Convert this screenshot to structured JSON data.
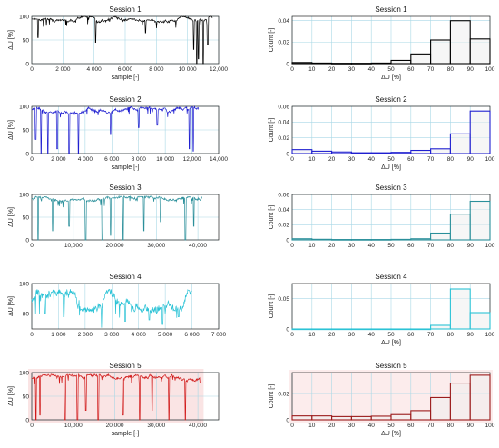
{
  "chart_data": [
    {
      "type": "line",
      "title": "Session 1",
      "xlabel": "sample [-]",
      "ylabel": "ΔU [%]",
      "color": "#000000",
      "xlim": [
        0,
        12000
      ],
      "ylim": [
        0,
        100
      ],
      "xticks": [
        0,
        2000,
        4000,
        6000,
        8000,
        10000,
        12000
      ],
      "xtick_labels": [
        "0",
        "2 000",
        "4 000",
        "6 000",
        "8 000",
        "10 000",
        "12,000"
      ],
      "yticks": [
        0,
        50,
        100
      ],
      "ytick_labels": [
        "0",
        "50",
        "100"
      ],
      "n_samples": 11600,
      "base": [
        88,
        100
      ],
      "dips": [
        [
          400,
          55
        ],
        [
          4100,
          45
        ],
        [
          7300,
          65
        ],
        [
          10400,
          30
        ],
        [
          10600,
          0
        ],
        [
          10700,
          10
        ],
        [
          11000,
          0
        ],
        [
          11300,
          40
        ]
      ]
    },
    {
      "type": "bar",
      "title": "Session 1",
      "xlabel": "ΔU [%]",
      "ylabel": "Count [-]",
      "color": "#000000",
      "categories": [
        0,
        10,
        20,
        30,
        40,
        50,
        60,
        70,
        80,
        90
      ],
      "values": [
        0.001,
        0.0005,
        0.0003,
        0.0003,
        0.0005,
        0.003,
        0.009,
        0.022,
        0.04,
        0.023
      ],
      "xlim": [
        0,
        100
      ],
      "ylim": [
        0,
        0.044
      ],
      "yticks": [
        0,
        0.02,
        0.04
      ],
      "ytick_labels": [
        "0",
        "0.02",
        "0.04"
      ],
      "xticks": [
        0,
        10,
        20,
        30,
        40,
        50,
        60,
        70,
        80,
        90,
        100
      ]
    },
    {
      "type": "line",
      "title": "Session 2",
      "xlabel": "sample [-]",
      "ylabel": "ΔU [%]",
      "color": "#1f1fd0",
      "xlim": [
        0,
        14000
      ],
      "ylim": [
        0,
        100
      ],
      "xticks": [
        0,
        2000,
        4000,
        6000,
        8000,
        10000,
        12000,
        14000
      ],
      "xtick_labels": [
        "0",
        "2 000",
        "4 000",
        "6 000",
        "8 000",
        "10 000",
        "12,000",
        "14,000"
      ],
      "yticks": [
        0,
        50,
        100
      ],
      "ytick_labels": [
        "0",
        "50",
        "100"
      ],
      "n_samples": 12500,
      "base": [
        85,
        98
      ],
      "dips": [
        [
          300,
          30
        ],
        [
          700,
          0
        ],
        [
          1200,
          0
        ],
        [
          1900,
          10
        ],
        [
          2800,
          0
        ],
        [
          3500,
          0
        ],
        [
          5900,
          40
        ],
        [
          8000,
          55
        ],
        [
          9400,
          60
        ],
        [
          11800,
          10
        ],
        [
          12100,
          5
        ]
      ]
    },
    {
      "type": "bar",
      "title": "Session 2",
      "xlabel": "ΔU [%]",
      "ylabel": "Count [-]",
      "color": "#1f1fd0",
      "categories": [
        0,
        10,
        20,
        30,
        40,
        50,
        60,
        70,
        80,
        90
      ],
      "values": [
        0.005,
        0.003,
        0.002,
        0.001,
        0.001,
        0.0015,
        0.004,
        0.006,
        0.025,
        0.054
      ],
      "xlim": [
        0,
        100
      ],
      "ylim": [
        0,
        0.06
      ],
      "yticks": [
        0,
        0.02,
        0.04,
        0.06
      ],
      "ytick_labels": [
        "0",
        "0.02",
        "0.04",
        "0.06"
      ],
      "xticks": [
        0,
        10,
        20,
        30,
        40,
        50,
        60,
        70,
        80,
        90,
        100
      ]
    },
    {
      "type": "line",
      "title": "Session 3",
      "xlabel": "",
      "ylabel": "ΔU [%]",
      "color": "#2a8f9a",
      "xlim": [
        0,
        45000
      ],
      "ylim": [
        0,
        100
      ],
      "xticks": [
        0,
        10000,
        20000,
        30000,
        40000
      ],
      "xtick_labels": [
        "0",
        "10,000",
        "20,000",
        "30,000",
        "40,000"
      ],
      "yticks": [
        0,
        50,
        100
      ],
      "ytick_labels": [
        "0",
        "50",
        "100"
      ],
      "n_samples": 41000,
      "base": [
        85,
        95
      ],
      "dips": [
        [
          1500,
          0
        ],
        [
          5000,
          20
        ],
        [
          9000,
          30
        ],
        [
          13000,
          0
        ],
        [
          17000,
          0
        ],
        [
          19000,
          10
        ],
        [
          22000,
          0
        ],
        [
          27000,
          20
        ],
        [
          31000,
          40
        ],
        [
          37000,
          0
        ],
        [
          39000,
          30
        ]
      ]
    },
    {
      "type": "bar",
      "title": "Session 3",
      "xlabel": "",
      "ylabel": "Count [-]",
      "color": "#2a8f9a",
      "categories": [
        0,
        10,
        20,
        30,
        40,
        50,
        60,
        70,
        80,
        90
      ],
      "values": [
        0.0015,
        0.0008,
        0.0005,
        0.0005,
        0.0005,
        0.0007,
        0.0015,
        0.009,
        0.034,
        0.051
      ],
      "xlim": [
        0,
        100
      ],
      "ylim": [
        0,
        0.06
      ],
      "yticks": [
        0,
        0.02,
        0.04,
        0.06
      ],
      "ytick_labels": [
        "0",
        "0.02",
        "0.04",
        "0.06"
      ],
      "xticks": [
        0,
        10,
        20,
        30,
        40,
        50,
        60,
        70,
        80,
        90,
        100
      ]
    },
    {
      "type": "line",
      "title": "Session 4",
      "xlabel": "",
      "ylabel": "ΔU [%]",
      "color": "#2cc3d6",
      "xlim": [
        0,
        7000
      ],
      "ylim": [
        70,
        100
      ],
      "xticks": [
        0,
        1000,
        2000,
        3000,
        4000,
        5000,
        6000,
        7000
      ],
      "xtick_labels": [
        "0",
        "1 000",
        "2 000",
        "3 000",
        "4 000",
        "5 000",
        "6 000",
        "7 000"
      ],
      "yticks": [
        80,
        100
      ],
      "ytick_labels": [
        "80",
        "100"
      ],
      "n_samples": 6000,
      "base": [
        82,
        95
      ],
      "dips": [
        [
          500,
          80
        ],
        [
          1200,
          78
        ],
        [
          3500,
          75
        ],
        [
          4400,
          76
        ],
        [
          4900,
          73
        ],
        [
          5500,
          78
        ]
      ]
    },
    {
      "type": "bar",
      "title": "Session 4",
      "xlabel": "ΔU [%]",
      "ylabel": "Count [-]",
      "color": "#2cc3d6",
      "categories": [
        0,
        10,
        20,
        30,
        40,
        50,
        60,
        70,
        80,
        90
      ],
      "values": [
        0,
        0,
        0,
        0,
        0,
        0,
        0,
        0.006,
        0.066,
        0.027
      ],
      "xlim": [
        0,
        100
      ],
      "ylim": [
        0,
        0.075
      ],
      "yticks": [
        0,
        0.05
      ],
      "ytick_labels": [
        "0",
        "0.05"
      ],
      "xticks": [
        0,
        10,
        20,
        30,
        40,
        50,
        60,
        70,
        80,
        90,
        100
      ]
    },
    {
      "type": "line",
      "title": "Session 5",
      "xlabel": "sample [-]",
      "ylabel": "ΔU [%]",
      "color": "#d01818",
      "shade": "#f5c9c9",
      "xlim": [
        0,
        45000
      ],
      "ylim": [
        0,
        100
      ],
      "xticks": [
        0,
        10000,
        20000,
        30000,
        40000
      ],
      "xtick_labels": [
        "0",
        "10,000",
        "20,000",
        "30,000",
        "40,000"
      ],
      "yticks": [
        0,
        50,
        100
      ],
      "ytick_labels": [
        "0",
        "50",
        "100"
      ],
      "n_samples": 40500,
      "base": [
        82,
        95
      ],
      "dips": [
        [
          1000,
          0
        ],
        [
          2000,
          10
        ],
        [
          8000,
          0
        ],
        [
          11000,
          0
        ],
        [
          13000,
          20
        ],
        [
          16000,
          0
        ],
        [
          22000,
          10
        ],
        [
          26000,
          0
        ],
        [
          29000,
          20
        ],
        [
          33000,
          0
        ],
        [
          37000,
          0
        ]
      ]
    },
    {
      "type": "bar",
      "title": "Session 5",
      "xlabel": "ΔU [%]",
      "ylabel": "Count [-]",
      "color": "#9b1b1b",
      "shade": "#f5c9c9",
      "categories": [
        0,
        10,
        20,
        30,
        40,
        50,
        60,
        70,
        80,
        90
      ],
      "values": [
        0.003,
        0.003,
        0.0025,
        0.0025,
        0.0028,
        0.004,
        0.007,
        0.017,
        0.028,
        0.034
      ],
      "xlim": [
        0,
        100
      ],
      "ylim": [
        0,
        0.036
      ],
      "yticks": [
        0,
        0.02
      ],
      "ytick_labels": [
        "0",
        "0.02"
      ],
      "xticks": [
        0,
        10,
        20,
        30,
        40,
        50,
        60,
        70,
        80,
        90,
        100
      ]
    }
  ]
}
